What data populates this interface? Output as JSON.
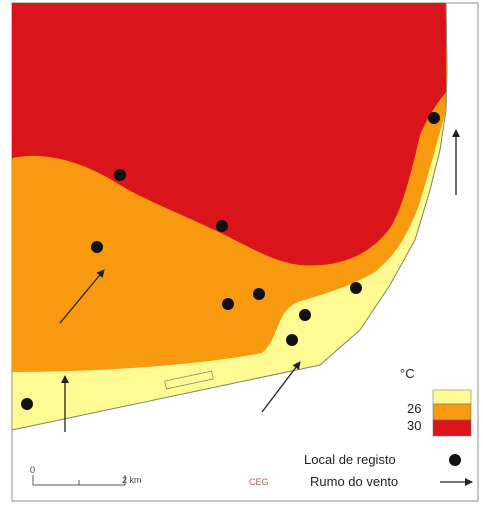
{
  "colors": {
    "hot": "#d9151b",
    "warm": "#f79a0f",
    "mild": "#fffb93",
    "sea": "#ffffff",
    "frame": "#8c8c8c",
    "marker": "#111111"
  },
  "legend": {
    "unit": "°C",
    "thresholds": [
      "26",
      "30"
    ],
    "classes": [
      {
        "name": "mild-zone",
        "color": "#fffb93"
      },
      {
        "name": "warm-zone",
        "color": "#f79a0f"
      },
      {
        "name": "hot-zone",
        "color": "#d9151b"
      }
    ],
    "station_label": "Local de registo",
    "wind_label": "Rumo do vento"
  },
  "scale_bar": {
    "start": "0",
    "end": "2 km"
  },
  "credit": "CEG",
  "icons": {
    "station": "filled-circle-marker",
    "wind": "arrow-marker"
  }
}
